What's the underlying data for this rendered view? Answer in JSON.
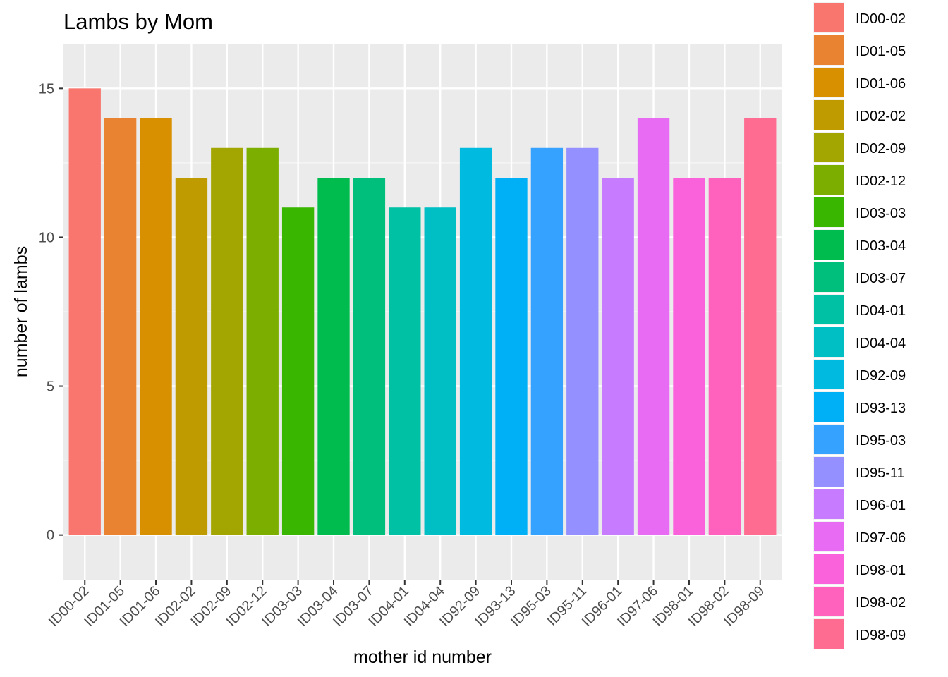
{
  "chart_data": {
    "type": "bar",
    "title": "Lambs by Mom",
    "xlabel": "mother id number",
    "ylabel": "number of lambs",
    "ylim": [
      -1.5,
      16.5
    ],
    "yticks": [
      0,
      5,
      10,
      15
    ],
    "grid": true,
    "legend_position": "right",
    "categories": [
      "ID00-02",
      "ID01-05",
      "ID01-06",
      "ID02-02",
      "ID02-09",
      "ID02-12",
      "ID03-03",
      "ID03-04",
      "ID03-07",
      "ID04-01",
      "ID04-04",
      "ID92-09",
      "ID93-13",
      "ID95-03",
      "ID95-11",
      "ID96-01",
      "ID97-06",
      "ID98-01",
      "ID98-02",
      "ID98-09"
    ],
    "values": [
      15,
      14,
      14,
      12,
      13,
      13,
      11,
      12,
      12,
      11,
      11,
      13,
      12,
      13,
      13,
      12,
      14,
      12,
      12,
      14
    ],
    "colors": [
      "#F8766D",
      "#EA8331",
      "#D89000",
      "#C09B00",
      "#A3A500",
      "#7CAE00",
      "#39B600",
      "#00BB4E",
      "#00BF7D",
      "#00C1A3",
      "#00BFC4",
      "#00BAE0",
      "#00B0F6",
      "#35A2FF",
      "#9590FF",
      "#C77CFF",
      "#E76BF3",
      "#FA62DB",
      "#FF62BC",
      "#FF6C91"
    ],
    "legend": [
      "ID00-02",
      "ID01-05",
      "ID01-06",
      "ID02-02",
      "ID02-09",
      "ID02-12",
      "ID03-03",
      "ID03-04",
      "ID03-07",
      "ID04-01",
      "ID04-04",
      "ID92-09",
      "ID93-13",
      "ID95-03",
      "ID95-11",
      "ID96-01",
      "ID97-06",
      "ID98-01",
      "ID98-02",
      "ID98-09"
    ]
  }
}
